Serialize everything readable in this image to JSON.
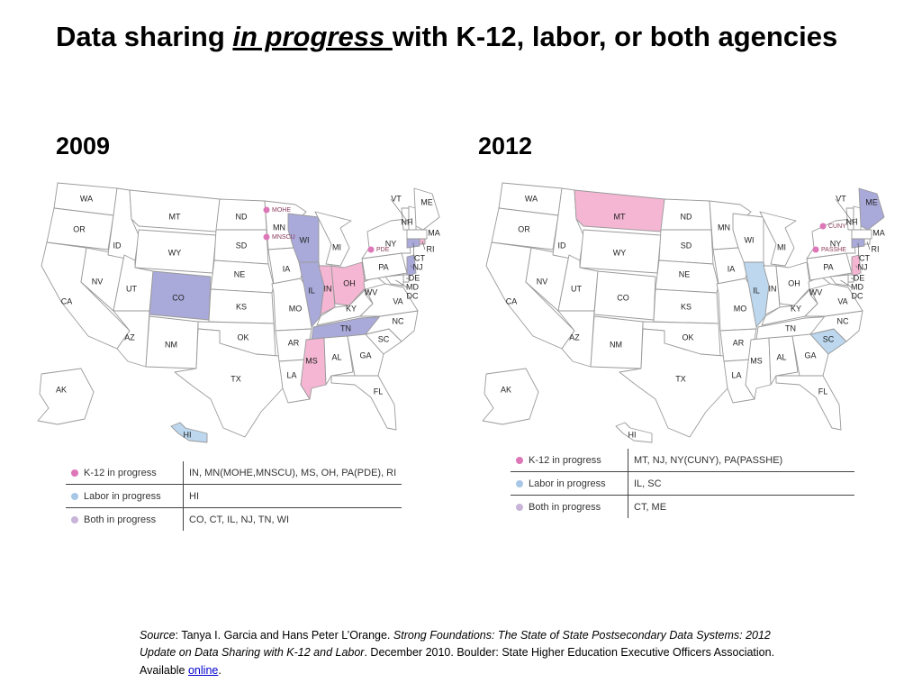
{
  "title": {
    "part1": "Data sharing ",
    "emphasis": "in progress ",
    "part2": "with K-12, labor, or both agencies"
  },
  "colors": {
    "k12": "#f4b6d2",
    "labor": "#bcd7ee",
    "both": "#a9a9da",
    "none": "#ffffff",
    "border": "#9a9a9a",
    "dot_k12": "#dd77b8",
    "dot_labor": "#a8c6e6",
    "dot_both": "#c7b4d8"
  },
  "maps": [
    {
      "year": "2009",
      "k12": [
        "IN",
        "MS",
        "OH",
        "RI"
      ],
      "labor": [
        "HI"
      ],
      "both": [
        "CO",
        "CT",
        "IL",
        "NJ",
        "TN",
        "WI"
      ],
      "agencies": [
        {
          "label": "MOHE",
          "state": "MN"
        },
        {
          "label": "MNSCU",
          "state": "MN"
        },
        {
          "label": "PDE",
          "state": "PA"
        }
      ],
      "legend": [
        {
          "category": "k12",
          "label": "K-12 in progress",
          "states": "IN, MN(MOHE,MNSCU), MS, OH, PA(PDE), RI"
        },
        {
          "category": "labor",
          "label": "Labor in progress",
          "states": "HI"
        },
        {
          "category": "both",
          "label": "Both in progress",
          "states": "CO, CT, IL, NJ, TN, WI"
        }
      ]
    },
    {
      "year": "2012",
      "k12": [
        "MT",
        "NJ"
      ],
      "labor": [
        "IL",
        "SC"
      ],
      "both": [
        "CT",
        "ME"
      ],
      "agencies": [
        {
          "label": "CUNY",
          "state": "NY"
        },
        {
          "label": "PASSHE",
          "state": "PA"
        }
      ],
      "legend": [
        {
          "category": "k12",
          "label": "K-12 in progress",
          "states": "MT, NJ, NY(CUNY), PA(PASSHE)"
        },
        {
          "category": "labor",
          "label": "Labor in progress",
          "states": "IL, SC"
        },
        {
          "category": "both",
          "label": "Both in progress",
          "states": "CT, ME"
        }
      ]
    }
  ],
  "source": {
    "label": "Source",
    "authors": ": Tanya I. Garcia and Hans Peter L’Orange. ",
    "work": "Strong Foundations: The State of State Postsecondary Data Systems: 2012 Update on Data Sharing with K-12 and Labor",
    "rest": ". December 2010. Boulder: State Higher Education Executive Officers Association. Available ",
    "link": "online",
    "end": "."
  }
}
